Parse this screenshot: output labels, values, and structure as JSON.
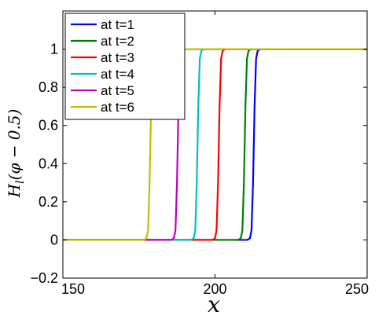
{
  "chart_data": {
    "type": "line",
    "xlabel": "x",
    "ylabel": "H_l(φ − 0.5)",
    "ylabel_parts": {
      "main": "H",
      "sub": "l",
      "rest": "(φ − 0.5)"
    },
    "xlim": [
      150,
      250
    ],
    "ylim": [
      -0.2,
      1.2
    ],
    "xticks": [
      150,
      200,
      250
    ],
    "xtick_labels": [
      "150",
      "200",
      "250"
    ],
    "yticks": [
      -0.2,
      0,
      0.2,
      0.4,
      0.6,
      0.8,
      1
    ],
    "ytick_labels": [
      "−0.2",
      "0",
      "0.2",
      "0.4",
      "0.6",
      "0.8",
      "1"
    ],
    "grid": false,
    "legend_position": "top-left",
    "series": [
      {
        "name": "at t=1",
        "color": "#0000ff",
        "x": [
          150,
          210.5,
          211.0,
          211.5,
          212.0,
          212.5,
          213.0,
          213.5,
          214.0,
          214.5,
          215.0,
          250
        ],
        "y": [
          0,
          0,
          0.003,
          0.01,
          0.05,
          0.3,
          0.7,
          0.95,
          0.99,
          0.997,
          1,
          1
        ]
      },
      {
        "name": "at t=2",
        "color": "#008000",
        "x": [
          150,
          207.5,
          208.0,
          208.5,
          209.0,
          209.5,
          210.0,
          210.5,
          211.0,
          211.5,
          212.0,
          250
        ],
        "y": [
          0,
          0,
          0.003,
          0.01,
          0.05,
          0.3,
          0.7,
          0.95,
          0.99,
          0.997,
          1,
          1
        ]
      },
      {
        "name": "at t=3",
        "color": "#ff0000",
        "x": [
          150,
          199.0,
          199.5,
          200.0,
          200.5,
          201.0,
          201.5,
          202.0,
          202.5,
          203.0,
          203.5,
          250
        ],
        "y": [
          0,
          0,
          0.003,
          0.01,
          0.05,
          0.3,
          0.7,
          0.95,
          0.99,
          0.997,
          1,
          1
        ]
      },
      {
        "name": "at t=4",
        "color": "#00bfbf",
        "x": [
          150,
          192.0,
          192.5,
          193.0,
          193.5,
          194.0,
          194.5,
          195.0,
          195.5,
          196.0,
          196.5,
          250
        ],
        "y": [
          0,
          0,
          0.003,
          0.01,
          0.05,
          0.3,
          0.7,
          0.95,
          0.99,
          0.997,
          1,
          1
        ]
      },
      {
        "name": "at t=5",
        "color": "#bf00bf",
        "x": [
          150,
          185.5,
          186.0,
          186.5,
          187.0,
          187.5,
          188.0,
          188.5,
          189.0,
          189.5,
          190.0,
          250
        ],
        "y": [
          0,
          0,
          0.003,
          0.01,
          0.05,
          0.3,
          0.7,
          0.95,
          0.99,
          0.997,
          1,
          1
        ]
      },
      {
        "name": "at t=6",
        "color": "#bfbf00",
        "x": [
          150,
          176.5,
          177.0,
          177.5,
          178.0,
          178.5,
          179.0,
          179.5,
          180.0,
          180.5,
          181.0,
          250
        ],
        "y": [
          0,
          0,
          0.003,
          0.01,
          0.05,
          0.3,
          0.7,
          0.95,
          0.99,
          0.997,
          1,
          1
        ]
      }
    ]
  }
}
